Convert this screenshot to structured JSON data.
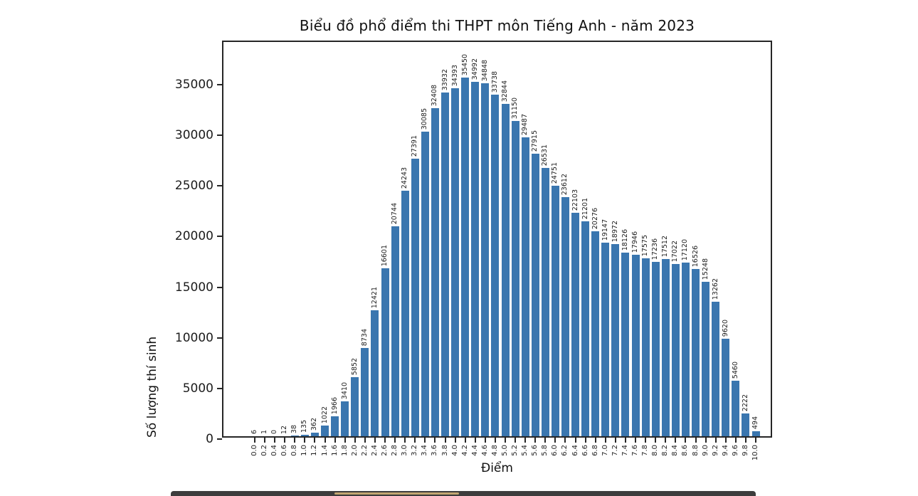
{
  "title": "Biểu đồ phổ điểm thi THPT môn Tiếng Anh - năm 2023",
  "chart_data": {
    "type": "bar",
    "title": "Biểu đồ phổ điểm thi THPT môn Tiếng Anh - năm 2023",
    "xlabel": "Điểm",
    "ylabel": "Số lượng thí sinh",
    "categories": [
      "0.0",
      "0.2",
      "0.4",
      "0.6",
      "0.8",
      "1.0",
      "1.2",
      "1.4",
      "1.6",
      "1.8",
      "2.0",
      "2.2",
      "2.4",
      "2.6",
      "2.8",
      "3.0",
      "3.2",
      "3.4",
      "3.6",
      "3.8",
      "4.0",
      "4.2",
      "4.4",
      "4.6",
      "4.8",
      "5.0",
      "5.2",
      "5.4",
      "5.6",
      "5.8",
      "6.0",
      "6.2",
      "6.4",
      "6.6",
      "6.8",
      "7.0",
      "7.2",
      "7.4",
      "7.6",
      "7.8",
      "8.0",
      "8.2",
      "8.4",
      "8.6",
      "8.8",
      "9.0",
      "9.2",
      "9.4",
      "9.6",
      "9.8",
      "10.0"
    ],
    "values": [
      6,
      1,
      0,
      12,
      38,
      135,
      362,
      1022,
      1966,
      3410,
      5852,
      8734,
      12421,
      16601,
      20744,
      24243,
      27391,
      30085,
      32408,
      33932,
      34393,
      35450,
      34992,
      34848,
      33738,
      32844,
      31150,
      29487,
      27915,
      26531,
      24751,
      23612,
      22103,
      21201,
      20276,
      19147,
      18972,
      18126,
      17946,
      17575,
      17236,
      17512,
      17022,
      17120,
      16526,
      15248,
      13262,
      9620,
      5460,
      2222,
      494
    ],
    "yticks": [
      0,
      5000,
      10000,
      15000,
      20000,
      25000,
      30000,
      35000
    ],
    "ylim": [
      0,
      39200
    ],
    "bar_labels_shown": true,
    "bar_label_rotation_deg": 90,
    "xtick_rotation_deg": 90,
    "grid": false,
    "legend": "none",
    "bar_color": "#3a76af",
    "axis_color": "#262626",
    "text_color": "#1c1c1c"
  },
  "decorations": {
    "bottom_strip_color": "#3d3d3d",
    "bottom_strip_accent_color": "#d9b87a"
  }
}
